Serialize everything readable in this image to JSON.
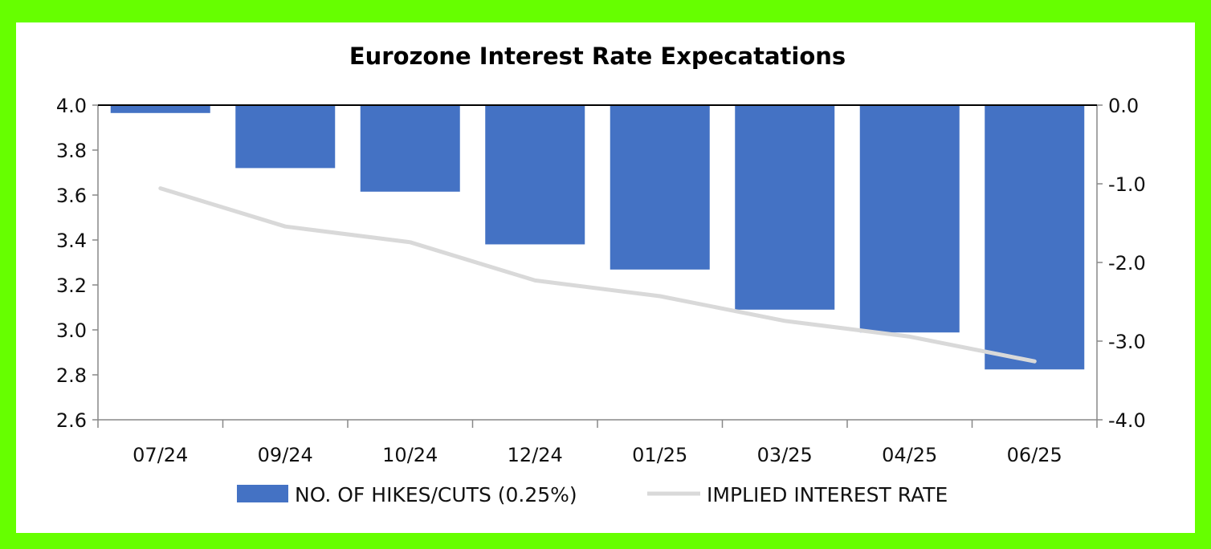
{
  "chart_data": {
    "type": "bar+line",
    "title": "Eurozone Interest Rate Expecatations",
    "categories": [
      "07/24",
      "09/24",
      "10/24",
      "12/24",
      "01/25",
      "03/25",
      "04/25",
      "06/25"
    ],
    "series": [
      {
        "name": "NO. OF HIKES/CUTS (0.25%)",
        "type": "bar",
        "axis": "right",
        "color": "#4472c4",
        "values": [
          -0.1,
          -0.8,
          -1.1,
          -1.77,
          -2.09,
          -2.6,
          -2.89,
          -3.36
        ]
      },
      {
        "name": "IMPLIED INTEREST RATE",
        "type": "line",
        "axis": "left",
        "color": "#d9d9d9",
        "values": [
          3.63,
          3.46,
          3.39,
          3.22,
          3.15,
          3.04,
          2.97,
          2.86
        ]
      }
    ],
    "y_left": {
      "min": 2.6,
      "max": 4.0,
      "step": 0.2,
      "ticks": [
        "2.6",
        "2.8",
        "3.0",
        "3.2",
        "3.4",
        "3.6",
        "3.8",
        "4.0"
      ]
    },
    "y_right": {
      "min": -4.0,
      "max": 0.0,
      "step": 1.0,
      "ticks": [
        "-4.0",
        "-3.0",
        "-2.0",
        "-1.0",
        "0.0"
      ]
    },
    "legend": {
      "position": "bottom"
    },
    "grid": false
  }
}
